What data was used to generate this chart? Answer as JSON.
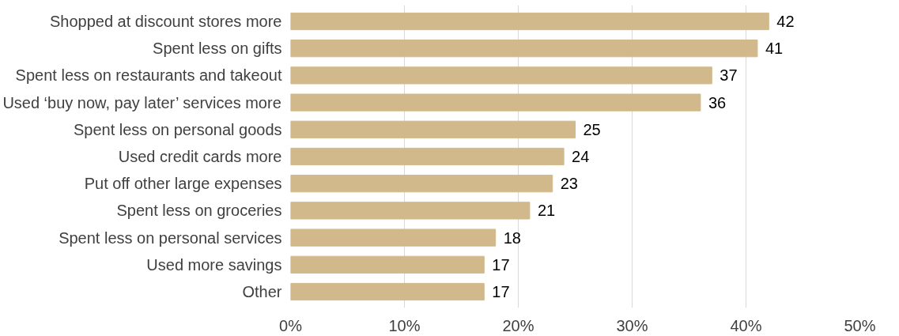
{
  "chart_data": {
    "type": "bar",
    "orientation": "horizontal",
    "categories": [
      "Shopped at discount stores more",
      "Spent less on gifts",
      "Spent less on restaurants and takeout",
      "Used ‘buy now, pay later’ services more",
      "Spent less on personal goods",
      "Used credit cards more",
      "Put off other large expenses",
      "Spent less on groceries",
      "Spent less on personal services",
      "Used more savings",
      "Other"
    ],
    "values": [
      42,
      41,
      37,
      36,
      25,
      24,
      23,
      21,
      18,
      17,
      17
    ],
    "color": "#d1b98c",
    "data_labels": true,
    "grid": "x",
    "xlim": [
      0,
      50
    ],
    "xticks": [
      {
        "value": 0,
        "label": "0%"
      },
      {
        "value": 10,
        "label": "10%"
      },
      {
        "value": 20,
        "label": "20%"
      },
      {
        "value": 30,
        "label": "30%"
      },
      {
        "value": 40,
        "label": "40%"
      },
      {
        "value": 50,
        "label": "50%"
      }
    ]
  }
}
